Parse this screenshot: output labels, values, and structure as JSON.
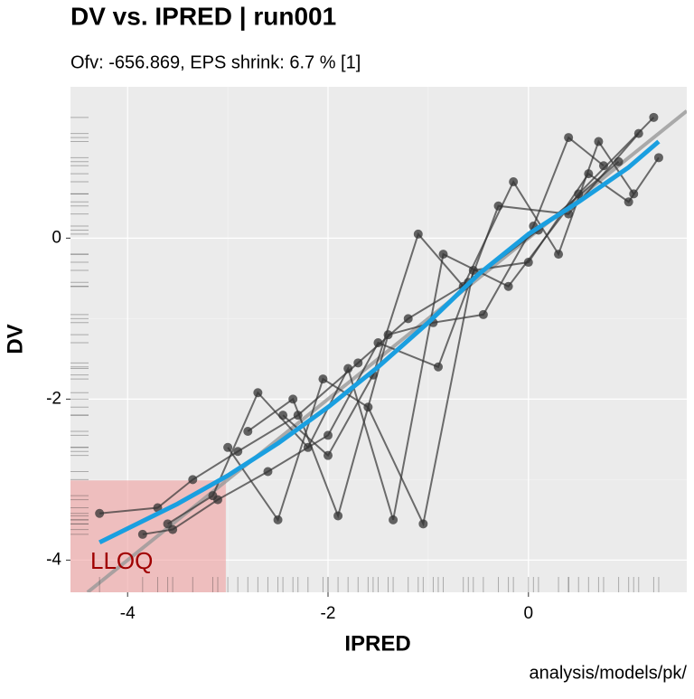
{
  "chart_data": {
    "type": "scatter",
    "title": "DV vs. IPRED | run001",
    "subtitle": "Ofv: -656.869, EPS shrink: 6.7 % [1]",
    "x_label": "IPRED",
    "y_label": "DV",
    "caption": "analysis/models/pk/",
    "xlim": [
      -4.57,
      1.58
    ],
    "ylim": [
      -4.4,
      1.88
    ],
    "xticks": [
      -4,
      -2,
      0
    ],
    "yticks": [
      -4,
      -2,
      0
    ],
    "grid": true,
    "point_color": "#333333",
    "smooth_color": "#1a9fe0",
    "identity_color": "#999999",
    "lloq": {
      "label": "LLOQ",
      "xmax": -3.02,
      "ymax": -3.01,
      "color": "#f0a0a0",
      "text_color": "#a00000"
    },
    "subjects": [
      {
        "x": [
          -4.28,
          -3.7,
          -3.35,
          -2.9,
          -2.3,
          -1.7,
          -1.2,
          -0.6,
          0.1,
          0.9
        ],
        "y": [
          -3.42,
          -3.35,
          -3.0,
          -2.65,
          -2.2,
          -1.55,
          -1.0,
          -0.55,
          0.1,
          0.95
        ]
      },
      {
        "x": [
          -3.85,
          -3.55,
          -3.1,
          -2.6,
          -2.0,
          -1.5,
          -0.9,
          -0.3,
          0.4,
          1.1
        ],
        "y": [
          -3.68,
          -3.62,
          -3.25,
          -2.9,
          -2.45,
          -1.3,
          -1.6,
          0.4,
          0.3,
          1.3
        ]
      },
      {
        "x": [
          -3.6,
          -3.15,
          -2.7,
          -2.2,
          -1.8,
          -1.35,
          -0.85,
          -0.2,
          0.5,
          1.25
        ],
        "y": [
          -3.55,
          -3.2,
          -1.92,
          -2.6,
          -1.62,
          -3.5,
          -0.2,
          -0.6,
          0.55,
          1.5
        ]
      },
      {
        "x": [
          -3.0,
          -2.5,
          -2.05,
          -1.6,
          -1.05,
          -0.55,
          0,
          0.6,
          1.0,
          1.3
        ],
        "y": [
          -2.6,
          -3.5,
          -1.75,
          -2.1,
          -3.55,
          -0.4,
          -0.3,
          0.8,
          0.45,
          1.0
        ]
      },
      {
        "x": [
          -2.8,
          -2.35,
          -1.9,
          -1.4,
          -0.95,
          -0.45,
          0.05,
          0.4,
          0.75
        ],
        "y": [
          -2.4,
          -2.0,
          -3.45,
          -1.2,
          -1.05,
          -0.95,
          0.15,
          1.25,
          0.9
        ]
      },
      {
        "x": [
          -2.45,
          -2.0,
          -1.55,
          -1.1,
          -0.65,
          -0.15,
          0.3,
          0.7,
          1.05
        ],
        "y": [
          -2.2,
          -2.7,
          -1.7,
          0.05,
          -0.6,
          0.7,
          -0.2,
          1.2,
          0.55
        ]
      }
    ],
    "smooth": {
      "x": [
        -4.28,
        -3.5,
        -3.0,
        -2.5,
        -2.0,
        -1.5,
        -1.0,
        -0.5,
        0,
        0.5,
        1.0,
        1.3
      ],
      "y": [
        -3.78,
        -3.3,
        -2.95,
        -2.55,
        -2.1,
        -1.6,
        -1.05,
        -0.45,
        0.05,
        0.45,
        0.88,
        1.2
      ]
    }
  }
}
